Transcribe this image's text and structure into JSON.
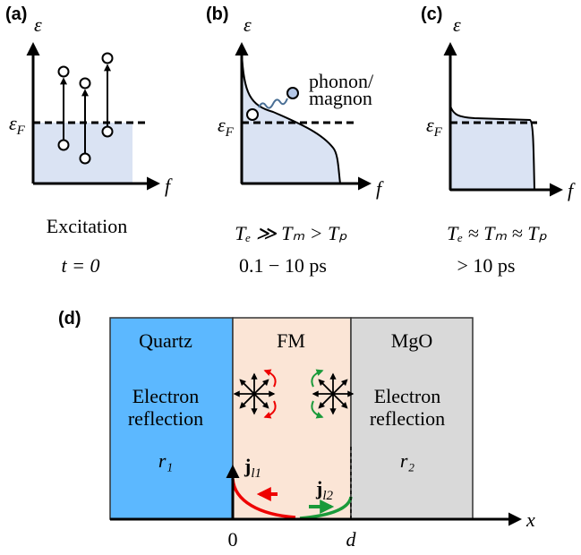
{
  "panels": [
    {
      "label": "(a)",
      "y_axis": "ε",
      "fermi": {
        "main": "ε",
        "sub": "F"
      },
      "x_axis": "f",
      "caption": [
        "Excitation",
        "t = 0"
      ]
    },
    {
      "label": "(b)",
      "y_axis": "ε",
      "fermi": {
        "main": "ε",
        "sub": "F"
      },
      "x_axis": "f",
      "annotation": [
        "phonon/",
        "magnon"
      ],
      "caption": [
        "Tₑ ≫ Tₘ > Tₚ",
        "0.1 − 10 ps"
      ]
    },
    {
      "label": "(c)",
      "y_axis": "ε",
      "fermi": {
        "main": "ε",
        "sub": "F"
      },
      "x_axis": "f",
      "caption": [
        "Tₑ ≈ Tₘ ≈ Tₚ",
        "> 10 ps"
      ]
    }
  ],
  "panel_d": {
    "label": "(d)",
    "regions": [
      {
        "name": "Quartz",
        "text": [
          "Electron",
          "reflection"
        ],
        "symbol": "r₁"
      },
      {
        "name": "FM"
      },
      {
        "name": "MgO",
        "text": [
          "Electron",
          "reflection"
        ],
        "symbol": "r₂"
      }
    ],
    "currents": [
      {
        "main": "j",
        "sub": "l1"
      },
      {
        "main": "j",
        "sub": "l2"
      }
    ],
    "x_axis": "x",
    "x_ticks": [
      "0",
      "d"
    ]
  }
}
